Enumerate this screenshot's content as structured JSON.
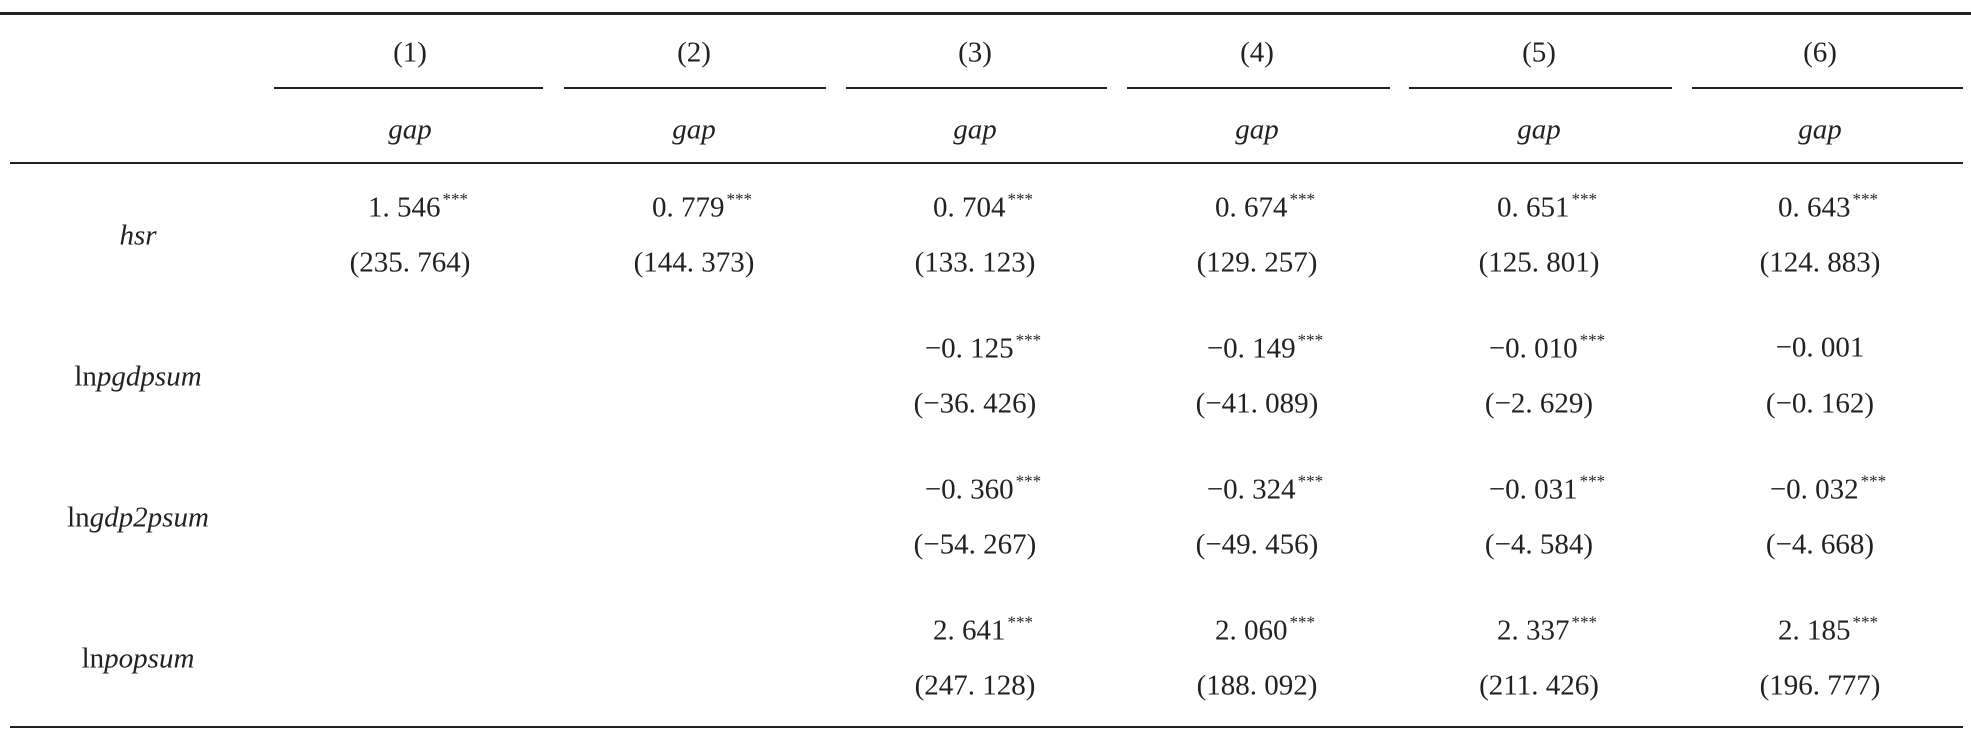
{
  "table": {
    "columns": [
      "(1)",
      "(2)",
      "(3)",
      "(4)",
      "(5)",
      "(6)"
    ],
    "depvars": [
      "gap",
      "gap",
      "gap",
      "gap",
      "gap",
      "gap"
    ],
    "rows": [
      {
        "label": {
          "name": "hsr"
        },
        "cells": [
          {
            "coef": "1. 546",
            "stars": "***",
            "t": "(235. 764)"
          },
          {
            "coef": "0. 779",
            "stars": "***",
            "t": "(144. 373)"
          },
          {
            "coef": "0. 704",
            "stars": "***",
            "t": "(133. 123)"
          },
          {
            "coef": "0. 674",
            "stars": "***",
            "t": "(129. 257)"
          },
          {
            "coef": "0. 651",
            "stars": "***",
            "t": "(125. 801)"
          },
          {
            "coef": "0. 643",
            "stars": "***",
            "t": "(124. 883)"
          }
        ]
      },
      {
        "label": {
          "prefix": "ln",
          "name": "pgdpsum"
        },
        "cells": [
          null,
          null,
          {
            "coef": "−0. 125",
            "stars": "***",
            "t": "(−36. 426)"
          },
          {
            "coef": "−0. 149",
            "stars": "***",
            "t": "(−41. 089)"
          },
          {
            "coef": "−0. 010",
            "stars": "***",
            "t": "(−2. 629)"
          },
          {
            "coef": "−0. 001",
            "t": "(−0. 162)"
          }
        ]
      },
      {
        "label": {
          "prefix": "ln",
          "name": "gdp2psum"
        },
        "cells": [
          null,
          null,
          {
            "coef": "−0. 360",
            "stars": "***",
            "t": "(−54. 267)"
          },
          {
            "coef": "−0. 324",
            "stars": "***",
            "t": "(−49. 456)"
          },
          {
            "coef": "−0. 031",
            "stars": "***",
            "t": "(−4. 584)"
          },
          {
            "coef": "−0. 032",
            "stars": "***",
            "t": "(−4. 668)"
          }
        ]
      },
      {
        "label": {
          "prefix": "ln",
          "name": "popsum"
        },
        "cells": [
          null,
          null,
          {
            "coef": "2. 641",
            "stars": "***",
            "t": "(247. 128)"
          },
          {
            "coef": "2. 060",
            "stars": "***",
            "t": "(188. 092)"
          },
          {
            "coef": "2. 337",
            "stars": "***",
            "t": "(211. 426)"
          },
          {
            "coef": "2. 185",
            "stars": "***",
            "t": "(196. 777)"
          }
        ]
      }
    ]
  }
}
